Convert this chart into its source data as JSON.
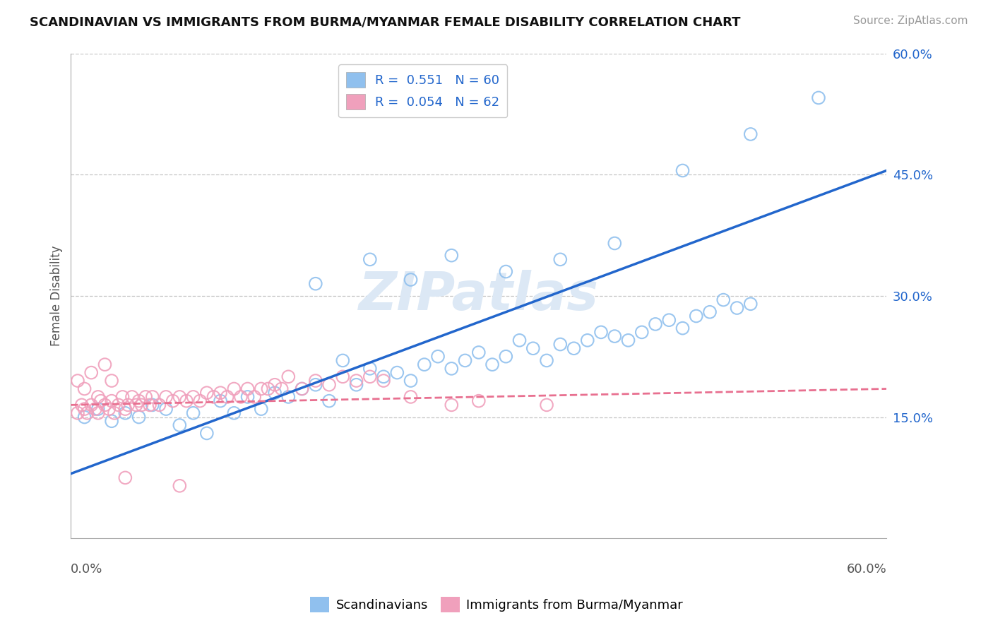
{
  "title": "SCANDINAVIAN VS IMMIGRANTS FROM BURMA/MYANMAR FEMALE DISABILITY CORRELATION CHART",
  "source": "Source: ZipAtlas.com",
  "ylabel": "Female Disability",
  "legend_label1": "Scandinavians",
  "legend_label2": "Immigrants from Burma/Myanmar",
  "r1": "0.551",
  "n1": "60",
  "r2": "0.054",
  "n2": "62",
  "xlim": [
    0.0,
    0.6
  ],
  "ylim": [
    0.0,
    0.6
  ],
  "yticks": [
    0.15,
    0.3,
    0.45,
    0.6
  ],
  "ytick_labels": [
    "15.0%",
    "30.0%",
    "45.0%",
    "60.0%"
  ],
  "color_blue": "#90c0ee",
  "color_pink": "#f0a0bc",
  "color_blue_line": "#2266cc",
  "color_pink_line": "#e87090",
  "color_grid": "#bbbbbb",
  "watermark_text": "ZIPatlas",
  "watermark_color": "#dce8f5",
  "blue_line": [
    0.0,
    0.08,
    0.6,
    0.455
  ],
  "pink_line": [
    0.0,
    0.165,
    0.6,
    0.185
  ],
  "blue_x": [
    0.01,
    0.02,
    0.03,
    0.04,
    0.05,
    0.06,
    0.07,
    0.08,
    0.09,
    0.1,
    0.11,
    0.12,
    0.13,
    0.14,
    0.15,
    0.16,
    0.17,
    0.18,
    0.19,
    0.2,
    0.21,
    0.22,
    0.23,
    0.24,
    0.25,
    0.26,
    0.27,
    0.28,
    0.29,
    0.3,
    0.31,
    0.32,
    0.33,
    0.34,
    0.35,
    0.36,
    0.37,
    0.38,
    0.39,
    0.4,
    0.41,
    0.42,
    0.43,
    0.44,
    0.45,
    0.46,
    0.47,
    0.48,
    0.49,
    0.5,
    0.18,
    0.22,
    0.25,
    0.28,
    0.32,
    0.36,
    0.4,
    0.45,
    0.5,
    0.55
  ],
  "blue_y": [
    0.15,
    0.16,
    0.145,
    0.155,
    0.15,
    0.165,
    0.16,
    0.14,
    0.155,
    0.13,
    0.17,
    0.155,
    0.175,
    0.16,
    0.18,
    0.175,
    0.185,
    0.19,
    0.17,
    0.22,
    0.19,
    0.21,
    0.2,
    0.205,
    0.195,
    0.215,
    0.225,
    0.21,
    0.22,
    0.23,
    0.215,
    0.225,
    0.245,
    0.235,
    0.22,
    0.24,
    0.235,
    0.245,
    0.255,
    0.25,
    0.245,
    0.255,
    0.265,
    0.27,
    0.26,
    0.275,
    0.28,
    0.295,
    0.285,
    0.29,
    0.315,
    0.345,
    0.32,
    0.35,
    0.33,
    0.345,
    0.365,
    0.455,
    0.5,
    0.545
  ],
  "pink_x": [
    0.005,
    0.008,
    0.01,
    0.012,
    0.015,
    0.018,
    0.02,
    0.022,
    0.025,
    0.028,
    0.03,
    0.032,
    0.035,
    0.038,
    0.04,
    0.042,
    0.045,
    0.048,
    0.05,
    0.052,
    0.055,
    0.058,
    0.06,
    0.065,
    0.07,
    0.075,
    0.08,
    0.085,
    0.09,
    0.095,
    0.1,
    0.105,
    0.11,
    0.115,
    0.12,
    0.125,
    0.13,
    0.135,
    0.14,
    0.145,
    0.15,
    0.155,
    0.16,
    0.17,
    0.18,
    0.19,
    0.2,
    0.21,
    0.22,
    0.23,
    0.25,
    0.28,
    0.3,
    0.35,
    0.005,
    0.01,
    0.015,
    0.02,
    0.025,
    0.03,
    0.04,
    0.08
  ],
  "pink_y": [
    0.155,
    0.165,
    0.16,
    0.155,
    0.165,
    0.16,
    0.155,
    0.17,
    0.165,
    0.16,
    0.17,
    0.155,
    0.165,
    0.175,
    0.16,
    0.165,
    0.175,
    0.165,
    0.17,
    0.165,
    0.175,
    0.165,
    0.175,
    0.165,
    0.175,
    0.17,
    0.175,
    0.17,
    0.175,
    0.17,
    0.18,
    0.175,
    0.18,
    0.175,
    0.185,
    0.175,
    0.185,
    0.175,
    0.185,
    0.185,
    0.19,
    0.185,
    0.2,
    0.185,
    0.195,
    0.19,
    0.2,
    0.195,
    0.2,
    0.195,
    0.175,
    0.165,
    0.17,
    0.165,
    0.195,
    0.185,
    0.205,
    0.175,
    0.215,
    0.195,
    0.075,
    0.065
  ]
}
